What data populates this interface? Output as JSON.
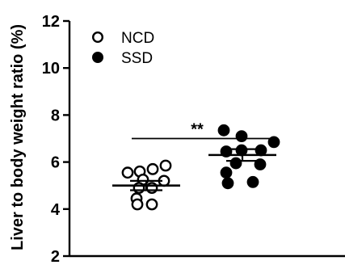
{
  "chart_data": {
    "type": "scatter",
    "ylabel": "Liver to body weight ratio (%)",
    "ylim": [
      2,
      12
    ],
    "yticks": [
      "2",
      "4",
      "6",
      "8",
      "10",
      "12"
    ],
    "grid": false,
    "legend_position": "top-left",
    "series": [
      {
        "name": "NCD",
        "marker": "open-circle",
        "values": [
          5.85,
          5.7,
          5.6,
          5.55,
          5.25,
          5.2,
          4.9,
          4.9,
          4.45,
          4.2,
          4.2
        ],
        "mean": 5.0,
        "sem_low": 4.8,
        "sem_high": 5.2
      },
      {
        "name": "SSD",
        "marker": "filled-circle",
        "values": [
          7.35,
          7.1,
          6.85,
          6.5,
          6.45,
          6.5,
          5.95,
          5.9,
          5.55,
          5.1,
          5.15
        ],
        "mean": 6.3,
        "sem_low": 6.05,
        "sem_high": 6.55
      }
    ],
    "annotations": [
      {
        "text": "**",
        "between": [
          "NCD",
          "SSD"
        ],
        "y": 7.0
      }
    ],
    "colors": {
      "axis": "#000000",
      "marker": "#000000",
      "background": "#ffffff"
    }
  }
}
